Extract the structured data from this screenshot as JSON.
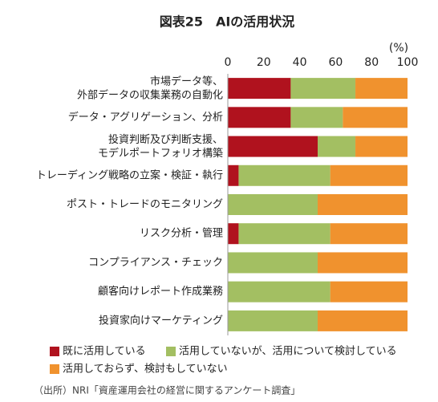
{
  "chart_data": {
    "type": "stacked-bar-horizontal",
    "title": "図表25　AIの活用状況",
    "unit_label": "(%)",
    "categories": [
      "市場データ等、\n外部データの収集業務の自動化",
      "データ・アグリゲーション、分析",
      "投資判断及び判断支援、\nモデルポートフォリオ構築",
      "トレーディング戦略の立案・検証・執行",
      "ポスト・トレードのモニタリング",
      "リスク分析・管理",
      "コンプライアンス・チェック",
      "顧客向けレポート作成業務",
      "投資家向けマーケティング"
    ],
    "series": [
      {
        "name": "既に活用している",
        "color": "#b0121e",
        "values": [
          35,
          35,
          50,
          6,
          0,
          6,
          0,
          0,
          0
        ]
      },
      {
        "name": "活用していないが、活用について検討している",
        "color": "#a3bf62",
        "values": [
          36,
          29,
          21,
          51,
          50,
          51,
          50,
          57,
          50
        ]
      },
      {
        "name": "活用しておらず、検討もしていない",
        "color": "#f0922e",
        "values": [
          29,
          36,
          29,
          43,
          50,
          43,
          50,
          43,
          50
        ]
      }
    ],
    "xlim": [
      0,
      100
    ],
    "xticks": [
      0,
      20,
      40,
      60,
      80,
      100
    ],
    "source": "（出所）NRI「資産運用会社の経営に関するアンケート調査」"
  }
}
